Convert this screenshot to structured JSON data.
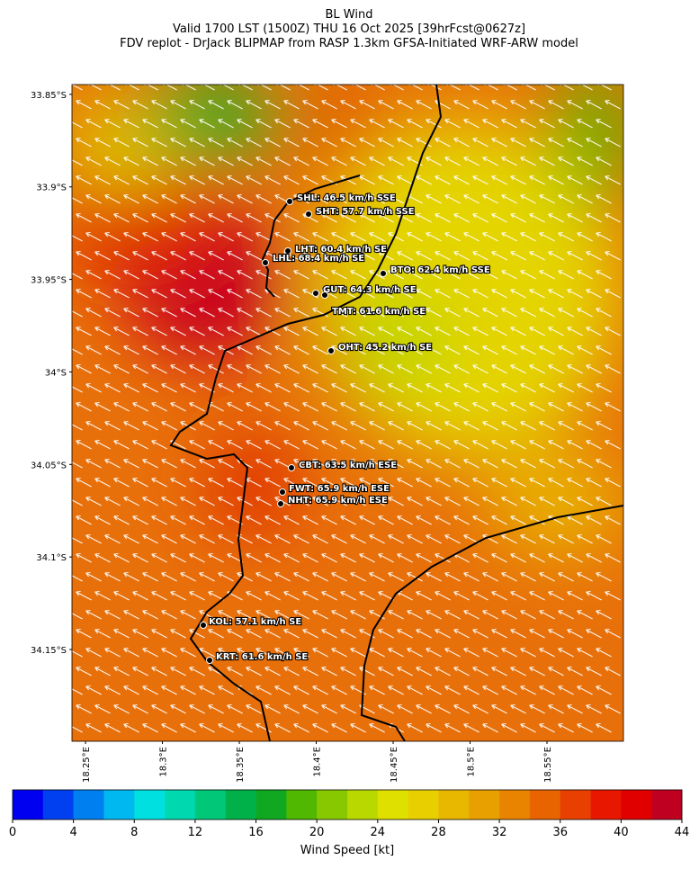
{
  "title": [
    "BL Wind",
    "Valid 1700 LST (1500Z) THU 16 Oct 2025 [39hrFcst@0627z]",
    "FDV replot - DrJack BLIPMAP from RASP 1.3km GFSA-Initiated WRF-ARW model"
  ],
  "map": {
    "lat_lim": [
      -33.8447,
      -34.1996
    ],
    "lon_lim": [
      18.2412,
      18.5997
    ],
    "lat_ticks": [
      {
        "value": -33.85,
        "label": "33.85°S"
      },
      {
        "value": -33.9,
        "label": "33.9°S"
      },
      {
        "value": -33.95,
        "label": "33.95°S"
      },
      {
        "value": -34,
        "label": "34°S"
      },
      {
        "value": -34.05,
        "label": "34.05°S"
      },
      {
        "value": -34.1,
        "label": "34.1°S"
      },
      {
        "value": -34.15,
        "label": "34.15°S"
      }
    ],
    "lon_ticks": [
      {
        "value": 18.25,
        "label": "18.25°E"
      },
      {
        "value": 18.3,
        "label": "18.3°E"
      },
      {
        "value": 18.35,
        "label": "18.35°E"
      },
      {
        "value": 18.4,
        "label": "18.4°E"
      },
      {
        "value": 18.45,
        "label": "18.45°E"
      },
      {
        "value": 18.5,
        "label": "18.5°E"
      },
      {
        "value": 18.55,
        "label": "18.55°E"
      }
    ],
    "stations": [
      "SHL: 46.5 km/h SSE",
      "SHT: 57.7 km/h SSE",
      "LHT: 60.4 km/h SE",
      "LHL: 68.4 km/h SE",
      "BTO: 62.4 km/h SSE",
      "GUT: 64.3 km/h SE",
      "TMT: 61.6 km/h SE",
      "OHT: 45.2 km/h SE",
      "CBT: 63.5 km/h ESE",
      "FWT: 65.9 km/h ESE",
      "NHT: 65.9 km/h ESE",
      "KOL: 57.1 km/h SE",
      "KRT: 61.6 km/h SE"
    ]
  },
  "colorbar": {
    "label": "Wind Speed [kt]",
    "lim": [
      0,
      44
    ],
    "ticks": [
      0,
      4,
      8,
      12,
      16,
      20,
      24,
      28,
      32,
      36,
      40,
      44
    ],
    "colors": [
      "#0000f0",
      "#0040f0",
      "#0080f0",
      "#00b8f0",
      "#00e0e0",
      "#00d8b0",
      "#00c878",
      "#00b048",
      "#10a820",
      "#50b800",
      "#88c800",
      "#b8d800",
      "#e0e000",
      "#e8d000",
      "#e8b800",
      "#e8a000",
      "#e88400",
      "#e86400",
      "#e84000",
      "#e81800",
      "#e00000",
      "#c00020"
    ]
  }
}
